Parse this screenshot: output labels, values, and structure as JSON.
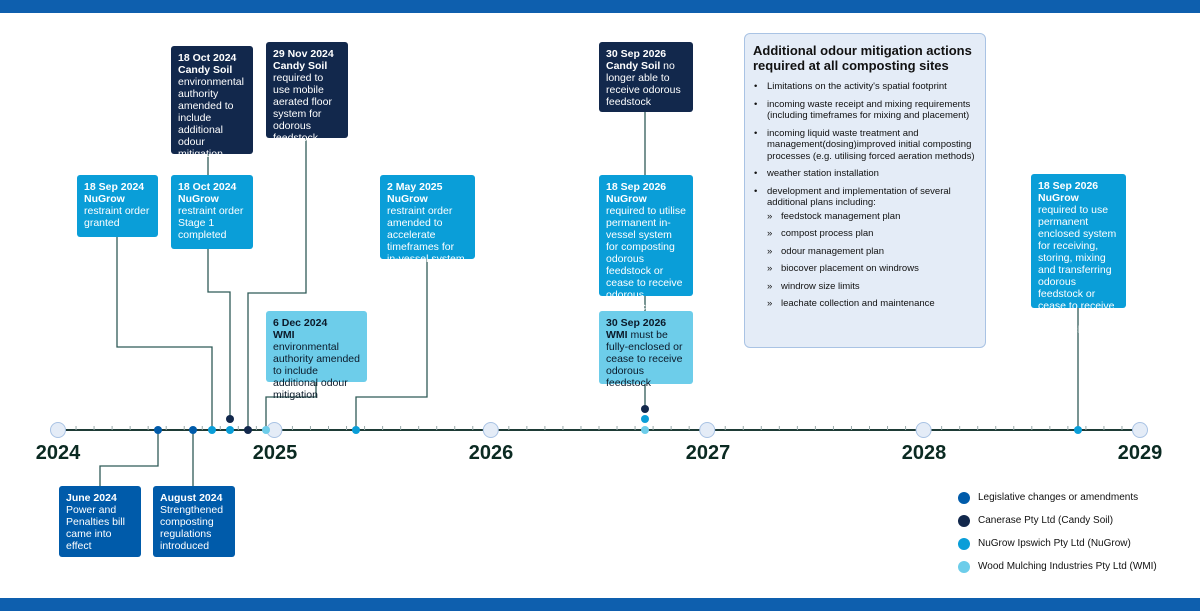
{
  "colors": {
    "legislative": "#005baa",
    "candy_soil": "#12284c",
    "nugrow": "#0a9ed8",
    "wmi": "#6dcdea",
    "band": "#0e5fae",
    "axis": "#1e3b36"
  },
  "years": [
    "2024",
    "2025",
    "2026",
    "2027",
    "2028",
    "2029"
  ],
  "events": {
    "nugrow_sep2024": {
      "date": "18 Sep 2024",
      "org": "NuGrow",
      "text": "restraint order granted"
    },
    "candy_oct2024": {
      "date": "18 Oct 2024",
      "org": "Candy Soil",
      "text": "environmental authority amended to include additional odour mitigation"
    },
    "nugrow_oct2024": {
      "date": "18 Oct 2024",
      "org": "NuGrow",
      "text": "restraint order Stage 1 completed"
    },
    "candy_nov2024": {
      "date": "29 Nov 2024",
      "org": "Candy Soil",
      "text": "required to use mobile aerated floor system for odorous feedstock"
    },
    "wmi_dec2024": {
      "date": "6 Dec 2024",
      "org": "WMI",
      "text": " environmental authority amended to  include additional odour mitigation"
    },
    "nugrow_may2025": {
      "date": "2 May 2025",
      "org": "NuGrow",
      "text": " restraint order amended to accelerate timeframes for in-vessel system"
    },
    "candy_sep2026": {
      "date": "30 Sep 2026",
      "org": "Candy Soil",
      "text": " no longer able to receive odorous feedstock"
    },
    "nugrow_sep2026": {
      "date": "18 Sep 2026",
      "org": "NuGrow",
      "text": "required to utilise permanent in-vessel system for composting odorous feedstock or cease to receive odorous feedstock"
    },
    "wmi_sep2026": {
      "date": "30 Sep 2026",
      "org": "WMI",
      "text": " must be fully-enclosed or cease to receive odorous feedstock"
    },
    "nugrow_sep2026b": {
      "date": "18 Sep 2026",
      "org": "NuGrow",
      "text": " required to use permanent enclosed system for receiving, storing, mixing and transferring odorous feedstock or cease to receive odorous feedstock"
    },
    "legis_jun2024": {
      "date": "June 2024",
      "text": "Power and Penalties bill came into effect"
    },
    "legis_aug2024": {
      "date": "August 2024",
      "text": "Strengthened composting regulations introduced"
    }
  },
  "info": {
    "title": "Additional odour mitigation actions required at all composting sites",
    "items": [
      "Limitations on the activity's spatial footprint",
      "incoming waste receipt and mixing requirements (including timeframes for mixing and placement)",
      "incoming liquid waste treatment and management(dosing)improved initial composting processes (e.g. utilising forced aeration methods)",
      "weather station installation",
      "development and implementation of several additional plans including:"
    ],
    "subitems": [
      "feedstock management plan",
      "compost process plan",
      "odour management plan",
      "biocover placement on windrows",
      "windrow size limits",
      "leachate collection and maintenance"
    ]
  },
  "legend": [
    "Legislative changes or amendments",
    "Canerase Pty Ltd (Candy Soil)",
    "NuGrow Ipswich Pty Ltd (NuGrow)",
    "Wood Mulching Industries Pty Ltd (WMI)"
  ]
}
